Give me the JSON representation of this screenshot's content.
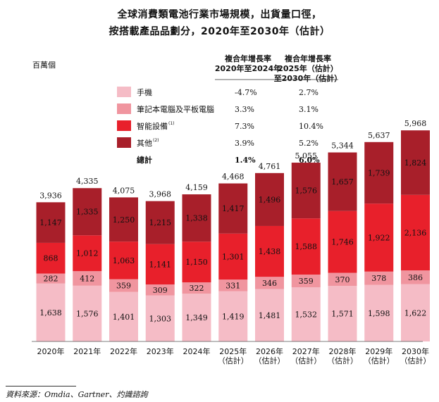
{
  "title_line1": "全球消費類電池行業市場規模，出貨量口徑，",
  "title_line2": "按搭載產品品劃分，2020年至2030年（估計）",
  "unit": "百萬個",
  "cagr_header_1": [
    "複合年增長率",
    "2020年至2024年"
  ],
  "cagr_header_2": [
    "複合年增長率",
    "2025年（估計）",
    "至2030年（估計）"
  ],
  "colors": {
    "phones": "#f5bcc6",
    "laptops_tablets": "#f0959f",
    "smart_devices": "#e8202b",
    "others": "#a81f2a"
  },
  "legend": [
    {
      "label": "手機",
      "sup": "",
      "color_key": "phones",
      "cagr1": "-4.7%",
      "cagr2": "2.7%"
    },
    {
      "label": "筆記本電腦及平板電腦",
      "sup": "",
      "color_key": "laptops_tablets",
      "cagr1": "3.3%",
      "cagr2": "3.1%"
    },
    {
      "label": "智能設備",
      "sup": "(1)",
      "color_key": "smart_devices",
      "cagr1": "7.3%",
      "cagr2": "10.4%"
    },
    {
      "label": "其他",
      "sup": "(2)",
      "color_key": "others",
      "cagr1": "3.9%",
      "cagr2": "5.2%"
    }
  ],
  "total_row": {
    "label": "總計",
    "cagr1": "1.4%",
    "cagr2": "6.0%"
  },
  "chart_data": {
    "type": "bar",
    "stacked": true,
    "title": "全球消費類電池行業市場規模，出貨量口徑，按搭載產品品劃分，2020年至2030年（估計）",
    "ylabel": "百萬個",
    "categories": [
      [
        "2020年"
      ],
      [
        "2021年"
      ],
      [
        "2022年"
      ],
      [
        "2023年"
      ],
      [
        "2024年"
      ],
      [
        "2025年",
        "（估計）"
      ],
      [
        "2026年",
        "（估計）"
      ],
      [
        "2027年",
        "（估計）"
      ],
      [
        "2028年",
        "（估計）"
      ],
      [
        "2029年",
        "（估計）"
      ],
      [
        "2030年",
        "（估計）"
      ]
    ],
    "series": [
      {
        "name": "手機",
        "color_key": "phones",
        "values": [
          1638,
          1576,
          1401,
          1303,
          1349,
          1419,
          1481,
          1532,
          1571,
          1598,
          1622
        ]
      },
      {
        "name": "筆記本電腦及平板電腦",
        "color_key": "laptops_tablets",
        "values": [
          282,
          412,
          359,
          309,
          322,
          331,
          346,
          359,
          370,
          378,
          386
        ]
      },
      {
        "name": "智能設備",
        "color_key": "smart_devices",
        "values": [
          868,
          1012,
          1063,
          1141,
          1150,
          1301,
          1438,
          1588,
          1746,
          1922,
          2136
        ]
      },
      {
        "name": "其他",
        "color_key": "others",
        "values": [
          1147,
          1335,
          1250,
          1215,
          1338,
          1417,
          1496,
          1576,
          1657,
          1739,
          1824
        ]
      }
    ],
    "totals": [
      3936,
      4335,
      4075,
      3968,
      4159,
      4468,
      4761,
      5055,
      5344,
      5637,
      5968
    ],
    "ylim": [
      0,
      6000
    ]
  },
  "source": "資料來源：Omdia、Gartner、灼識諮詢"
}
